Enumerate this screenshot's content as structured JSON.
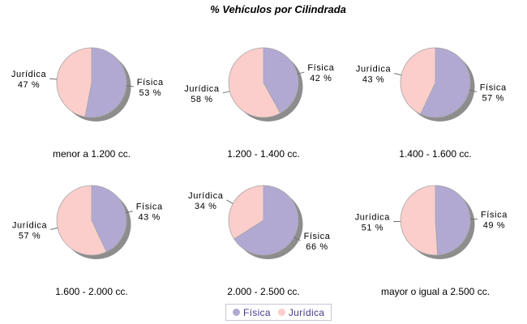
{
  "chart_data": {
    "type": "pie",
    "title": "% Vehículos por Cilindrada",
    "layout": "grid 2 rows x 3 cols, legend bottom center",
    "percent_suffix": " %",
    "legend": {
      "position": "bottom",
      "items": [
        "Física",
        "Jurídica"
      ]
    },
    "charts": [
      {
        "category": "menor a 1.200 cc.",
        "slices": [
          {
            "name": "Física",
            "value": 53
          },
          {
            "name": "Jurídica",
            "value": 47
          }
        ]
      },
      {
        "category": "1.200 - 1.400 cc.",
        "slices": [
          {
            "name": "Física",
            "value": 42
          },
          {
            "name": "Jurídica",
            "value": 58
          }
        ]
      },
      {
        "category": "1.400 - 1.600 cc.",
        "slices": [
          {
            "name": "Física",
            "value": 57
          },
          {
            "name": "Jurídica",
            "value": 43
          }
        ]
      },
      {
        "category": "1.600 - 2.000 cc.",
        "slices": [
          {
            "name": "Física",
            "value": 43
          },
          {
            "name": "Jurídica",
            "value": 57
          }
        ]
      },
      {
        "category": "2.000 - 2.500 cc.",
        "slices": [
          {
            "name": "Física",
            "value": 66
          },
          {
            "name": "Jurídica",
            "value": 34
          }
        ]
      },
      {
        "category": "mayor o igual a 2.500 cc.",
        "slices": [
          {
            "name": "Física",
            "value": 49
          },
          {
            "name": "Jurídica",
            "value": 51
          }
        ]
      }
    ]
  },
  "colors": {
    "series": {
      "Física": "#b2a9d3",
      "Jurídica": "#fbcecb"
    },
    "shadow": "#8d8d8d",
    "slice_stroke": "#a5a5a5",
    "leader_line": "#707070",
    "label_text": "#000000",
    "legend_text": "#453c8f",
    "legend_border": "#c8c5d8"
  }
}
